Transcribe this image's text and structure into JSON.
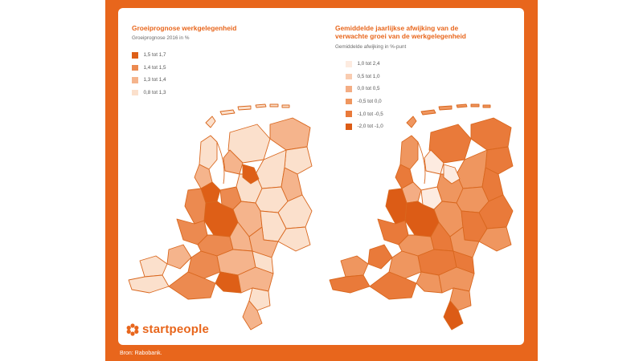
{
  "left_panel": {
    "title": "Groeiprognose werkgelegenheid",
    "subtitle": "Groeiprognose 2016 in %",
    "legend": [
      {
        "label": "1,5 tot 1,7",
        "color": "#de5f17"
      },
      {
        "label": "1,4 tot 1,5",
        "color": "#ec8a50"
      },
      {
        "label": "1,3 tot 1,4",
        "color": "#f5b48c"
      },
      {
        "label": "0,8 tot 1,3",
        "color": "#fbe0cc"
      }
    ]
  },
  "right_panel": {
    "title_line1": "Gemiddelde jaarlijkse afwijking van de",
    "title_line2": "verwachte groei van de werkgelegenheid",
    "subtitle": "Gemiddelde afwijking in %-punt",
    "legend": [
      {
        "label": "1,0 tot 2,4",
        "color": "#fdebe0"
      },
      {
        "label": "0,5 tot 1,0",
        "color": "#f9ccb0"
      },
      {
        "label": "0,0 tot 0,5",
        "color": "#f4ad84"
      },
      {
        "label": "-0,5 tot 0,0",
        "color": "#ef965f"
      },
      {
        "label": "-1,0 tot -0,5",
        "color": "#e97a3a"
      },
      {
        "label": "-2,0 tot -1,0",
        "color": "#dc5c16"
      }
    ]
  },
  "brand": {
    "name": "startpeople",
    "icon": "asterisk-flower-icon"
  },
  "source": "Bron: Rabobank."
}
